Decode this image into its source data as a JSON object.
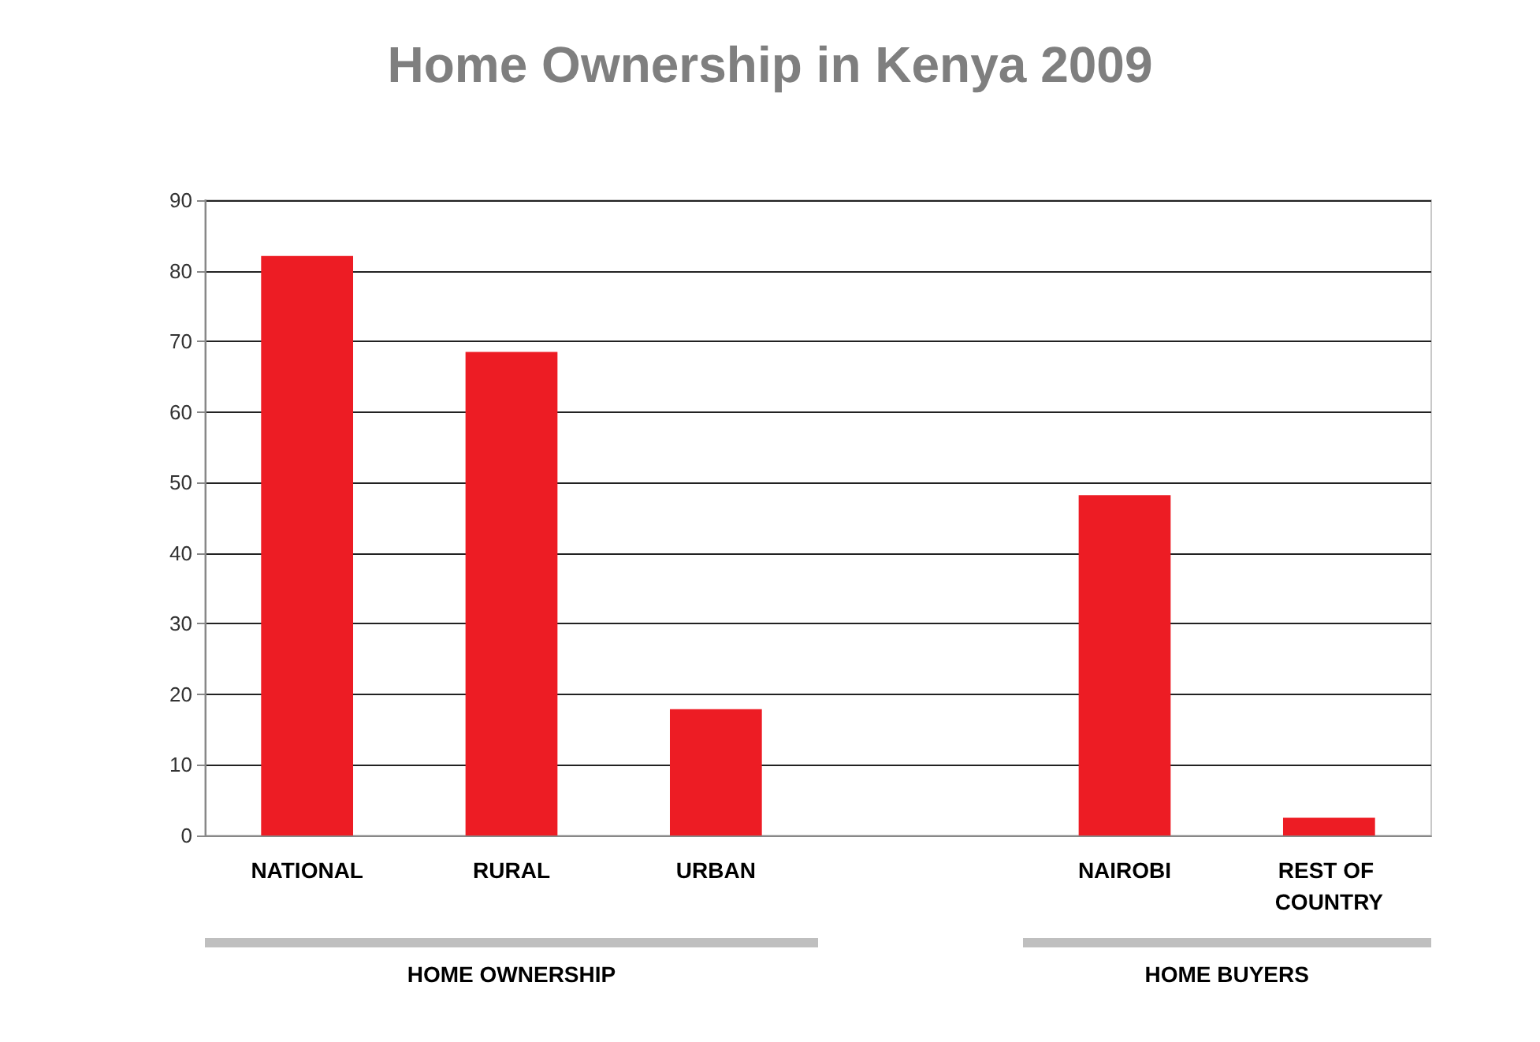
{
  "chart_data": {
    "type": "bar",
    "title": "Home Ownership in Kenya 2009",
    "categories": [
      "NATIONAL",
      "RURAL",
      "URBAN",
      null,
      "NAIROBI",
      "REST OF COUNTRY"
    ],
    "values": [
      82.1,
      68.5,
      17.9,
      null,
      48.2,
      2.5
    ],
    "color": "#ed1c24",
    "ylim": [
      0,
      90
    ],
    "yticks": [
      0,
      10,
      20,
      30,
      40,
      50,
      60,
      70,
      80,
      90
    ],
    "grid": "y",
    "annotations": [
      "HOME OWNERSHIP",
      "HOME BUYERS"
    ]
  }
}
